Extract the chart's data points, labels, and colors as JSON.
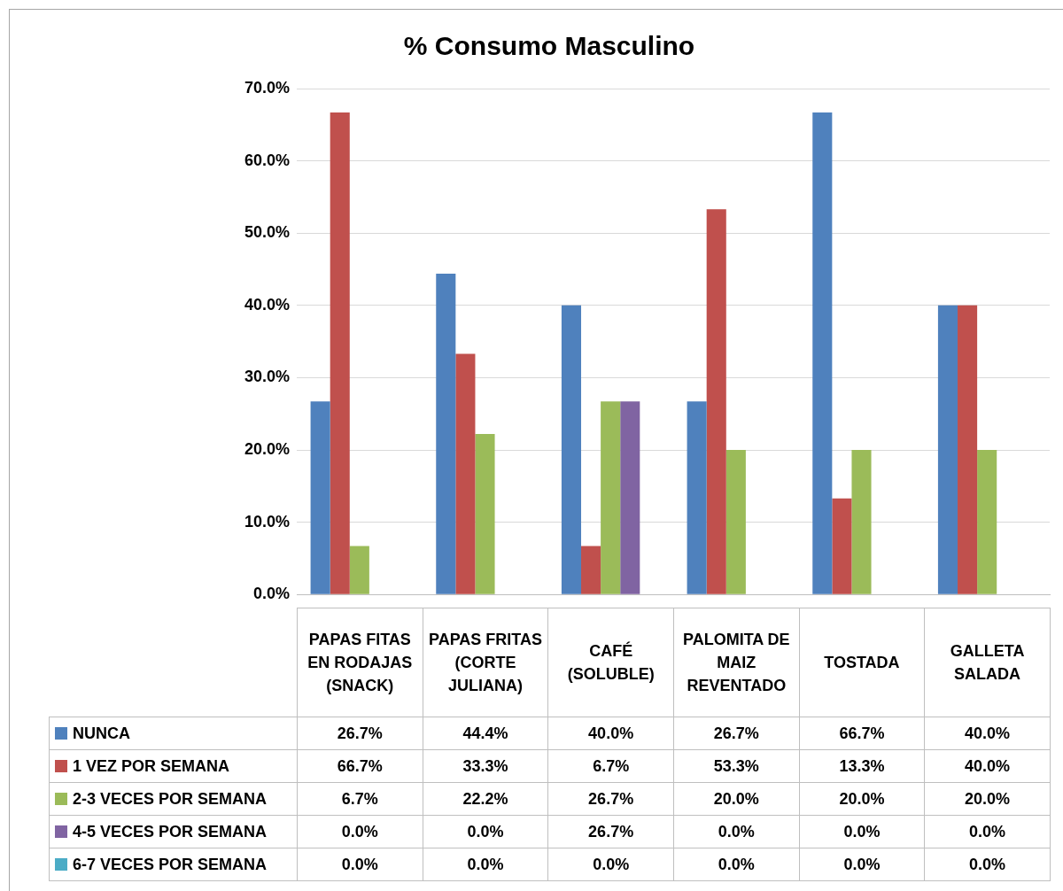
{
  "chart_data": {
    "type": "bar",
    "title": "% Consumo Masculino",
    "categories": [
      "PAPAS FITAS EN RODAJAS (SNACK)",
      "PAPAS FRITAS (CORTE JULIANA)",
      "CAFÉ (SOLUBLE)",
      "PALOMITA DE MAIZ REVENTADO",
      "TOSTADA",
      "GALLETA SALADA"
    ],
    "series": [
      {
        "name": "NUNCA",
        "color": "#4f81bd",
        "values": [
          26.7,
          44.4,
          40.0,
          26.7,
          66.7,
          40.0
        ],
        "value_labels": [
          "26.7%",
          "44.4%",
          "40.0%",
          "26.7%",
          "66.7%",
          "40.0%"
        ]
      },
      {
        "name": "1 VEZ POR SEMANA",
        "color": "#c0504d",
        "values": [
          66.7,
          33.3,
          6.7,
          53.3,
          13.3,
          40.0
        ],
        "value_labels": [
          "66.7%",
          "33.3%",
          "6.7%",
          "53.3%",
          "13.3%",
          "40.0%"
        ]
      },
      {
        "name": "2-3 VECES POR SEMANA",
        "color": "#9bbb59",
        "values": [
          6.7,
          22.2,
          26.7,
          20.0,
          20.0,
          20.0
        ],
        "value_labels": [
          "6.7%",
          "22.2%",
          "26.7%",
          "20.0%",
          "20.0%",
          "20.0%"
        ]
      },
      {
        "name": "4-5 VECES POR SEMANA",
        "color": "#8064a2",
        "values": [
          0,
          0,
          26.7,
          0,
          0,
          0
        ],
        "value_labels": [
          "0.0%",
          "0.0%",
          "26.7%",
          "0.0%",
          "0.0%",
          "0.0%"
        ]
      },
      {
        "name": "6-7 VECES POR SEMANA",
        "color": "#4bacc6",
        "values": [
          0,
          0,
          0,
          0,
          0,
          0
        ],
        "value_labels": [
          "0.0%",
          "0.0%",
          "0.0%",
          "0.0%",
          "0.0%",
          "0.0%"
        ]
      }
    ],
    "ylim": [
      0,
      70
    ],
    "yticks": [
      {
        "value": 0,
        "label": "0.0%"
      },
      {
        "value": 10,
        "label": "10.0%"
      },
      {
        "value": 20,
        "label": "20.0%"
      },
      {
        "value": 30,
        "label": "30.0%"
      },
      {
        "value": 40,
        "label": "40.0%"
      },
      {
        "value": 50,
        "label": "50.0%"
      },
      {
        "value": 60,
        "label": "60.0%"
      },
      {
        "value": 70,
        "label": "70.0%"
      }
    ],
    "grid": "y",
    "legend": "bottom"
  }
}
